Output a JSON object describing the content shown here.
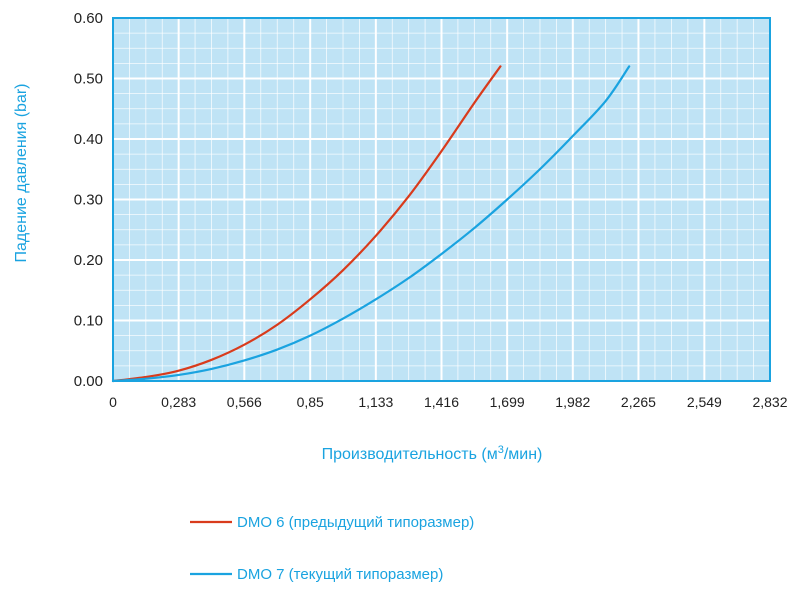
{
  "chart_data": {
    "type": "line",
    "xlabel_prefix": "Производительность (м",
    "xlabel_sup": "3",
    "xlabel_suffix": "/мин)",
    "ylabel": "Падение давления (bar)",
    "x_ticks": [
      0,
      0.283,
      0.566,
      0.85,
      1.133,
      1.416,
      1.699,
      1.982,
      2.265,
      2.549,
      2.832
    ],
    "x_tick_labels": [
      "0",
      "0,283",
      "0,566",
      "0,85",
      "1,133",
      "1,416",
      "1,699",
      "1,982",
      "2,265",
      "2,549",
      "2,832"
    ],
    "y_ticks": [
      0,
      0.1,
      0.2,
      0.3,
      0.4,
      0.5,
      0.6
    ],
    "y_tick_labels": [
      "0.00",
      "0.10",
      "0.20",
      "0.30",
      "0.40",
      "0.50",
      "0.60"
    ],
    "xlim": [
      0,
      2.832
    ],
    "ylim": [
      0,
      0.6
    ],
    "grid": true,
    "legend_position": "bottom",
    "plot_background": "#bfe3f5",
    "axis_color": "#1aa3e0",
    "series": [
      {
        "name": "DMO 6 (предыдущий типоразмер)",
        "color": "#d93b1c",
        "x": [
          0,
          0.15,
          0.283,
          0.425,
          0.566,
          0.708,
          0.85,
          0.991,
          1.133,
          1.274,
          1.416,
          1.558,
          1.67
        ],
        "y": [
          0,
          0.007,
          0.017,
          0.035,
          0.06,
          0.093,
          0.135,
          0.183,
          0.24,
          0.305,
          0.38,
          0.46,
          0.52
        ]
      },
      {
        "name": "DMO 7 (текущий типоразмер)",
        "color": "#1aa3e0",
        "x": [
          0,
          0.15,
          0.283,
          0.425,
          0.566,
          0.708,
          0.85,
          0.991,
          1.133,
          1.274,
          1.416,
          1.558,
          1.699,
          1.84,
          1.982,
          2.124,
          2.225
        ],
        "y": [
          0,
          0.004,
          0.01,
          0.02,
          0.034,
          0.052,
          0.075,
          0.103,
          0.135,
          0.17,
          0.21,
          0.253,
          0.3,
          0.35,
          0.405,
          0.463,
          0.52
        ]
      }
    ]
  }
}
